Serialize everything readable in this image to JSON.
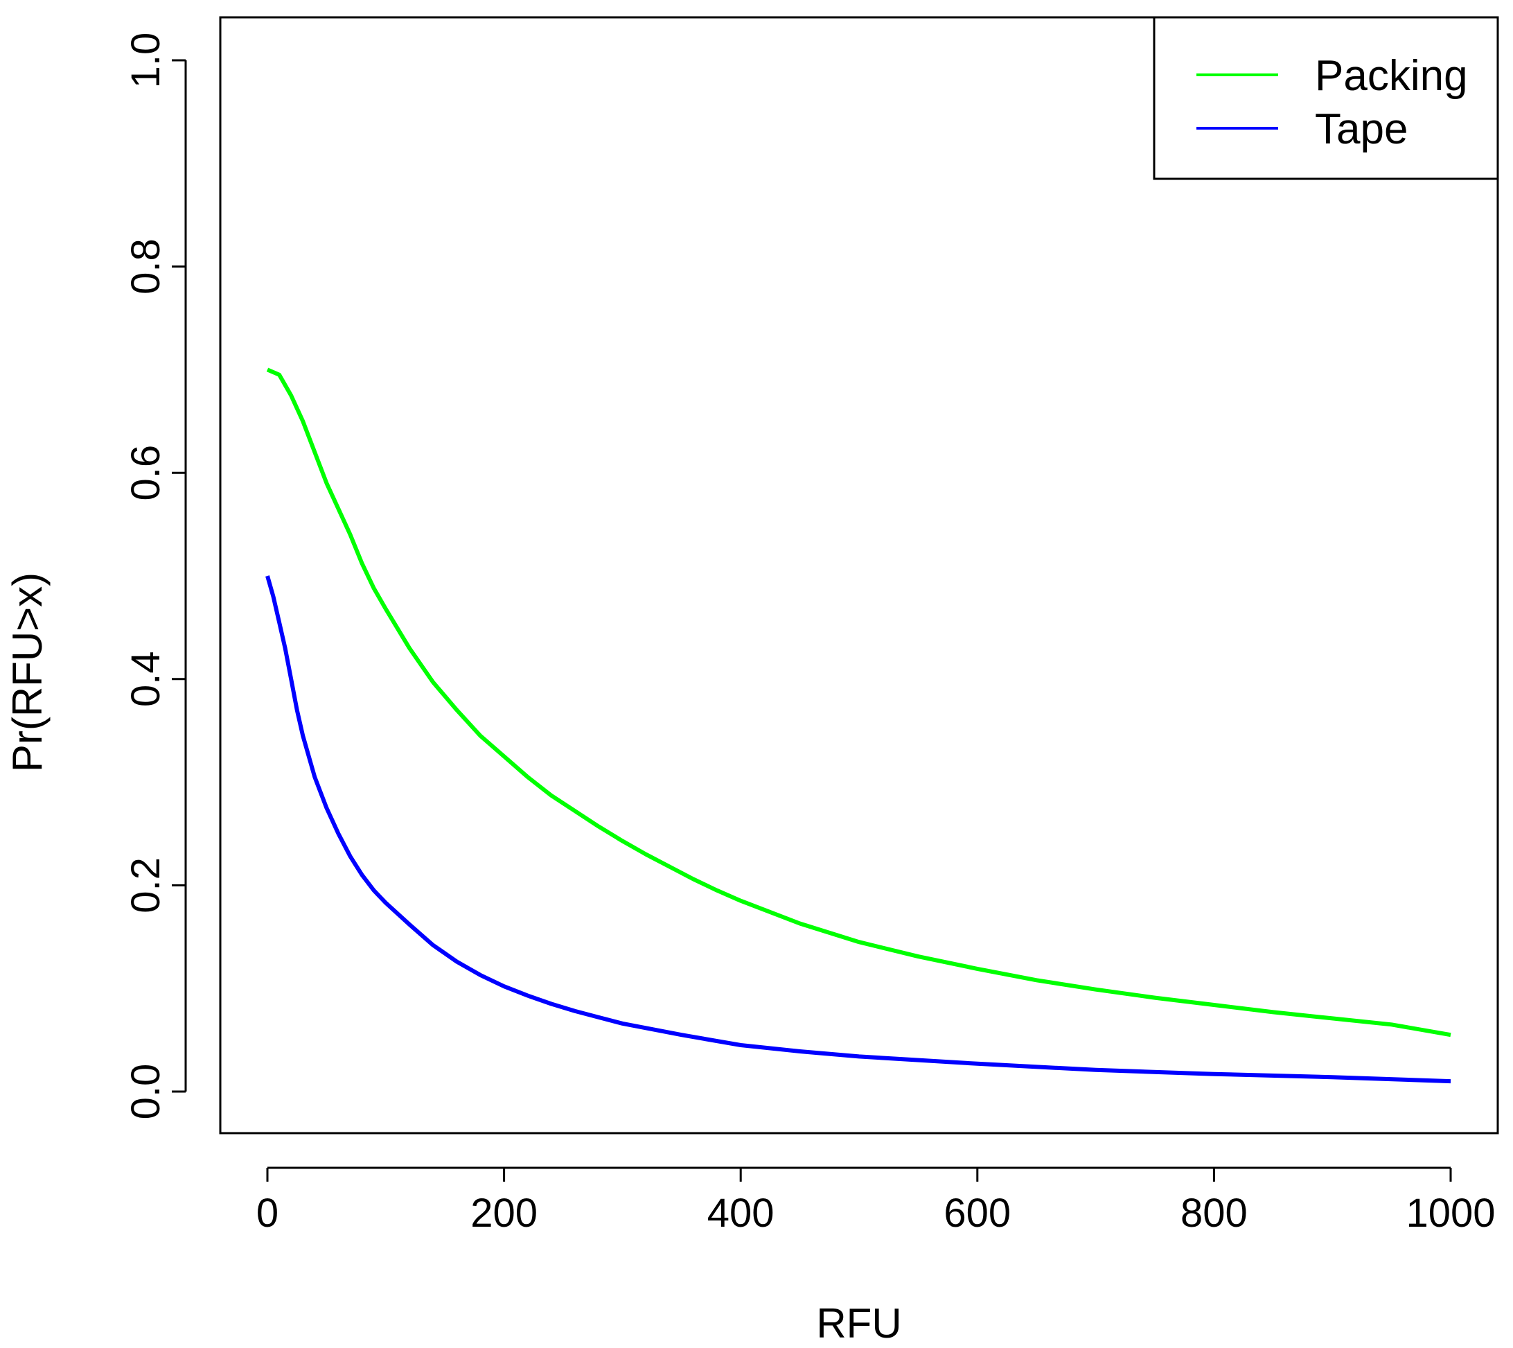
{
  "chart_data": {
    "type": "line",
    "title": "",
    "xlabel": "RFU",
    "ylabel": "Pr(RFU>x)",
    "xlim": [
      -40,
      1030
    ],
    "ylim": [
      -0.04,
      1.04
    ],
    "x_ticks": [
      0,
      200,
      400,
      600,
      800,
      1000
    ],
    "x_tick_labels": [
      "0",
      "200",
      "400",
      "600",
      "800",
      "1000"
    ],
    "y_ticks": [
      0.0,
      0.2,
      0.4,
      0.6,
      0.8,
      1.0
    ],
    "y_tick_labels": [
      "0.0",
      "0.2",
      "0.4",
      "0.6",
      "0.8",
      "1.0"
    ],
    "grid": false,
    "legend_position": "top-right",
    "series": [
      {
        "name": "Packing",
        "color": "#00ff00",
        "x": [
          0,
          10,
          20,
          30,
          40,
          50,
          60,
          70,
          80,
          90,
          100,
          120,
          140,
          160,
          180,
          200,
          220,
          240,
          260,
          280,
          300,
          320,
          340,
          360,
          380,
          400,
          450,
          500,
          550,
          600,
          650,
          700,
          750,
          800,
          850,
          900,
          950,
          1000
        ],
        "values": [
          0.7,
          0.695,
          0.675,
          0.65,
          0.62,
          0.59,
          0.565,
          0.54,
          0.512,
          0.488,
          0.468,
          0.43,
          0.397,
          0.37,
          0.345,
          0.325,
          0.305,
          0.287,
          0.272,
          0.257,
          0.243,
          0.23,
          0.218,
          0.206,
          0.195,
          0.185,
          0.163,
          0.145,
          0.131,
          0.119,
          0.108,
          0.099,
          0.091,
          0.084,
          0.077,
          0.071,
          0.065,
          0.055
        ]
      },
      {
        "name": "Tape",
        "color": "#0000ff",
        "x": [
          0,
          5,
          10,
          15,
          20,
          25,
          30,
          40,
          50,
          60,
          70,
          80,
          90,
          100,
          120,
          140,
          160,
          180,
          200,
          220,
          240,
          260,
          280,
          300,
          350,
          400,
          450,
          500,
          600,
          700,
          800,
          900,
          1000
        ],
        "values": [
          0.5,
          0.48,
          0.455,
          0.43,
          0.4,
          0.37,
          0.345,
          0.305,
          0.275,
          0.25,
          0.228,
          0.21,
          0.195,
          0.183,
          0.162,
          0.142,
          0.126,
          0.113,
          0.102,
          0.093,
          0.085,
          0.078,
          0.072,
          0.066,
          0.055,
          0.045,
          0.039,
          0.034,
          0.027,
          0.021,
          0.017,
          0.014,
          0.01
        ]
      }
    ]
  }
}
